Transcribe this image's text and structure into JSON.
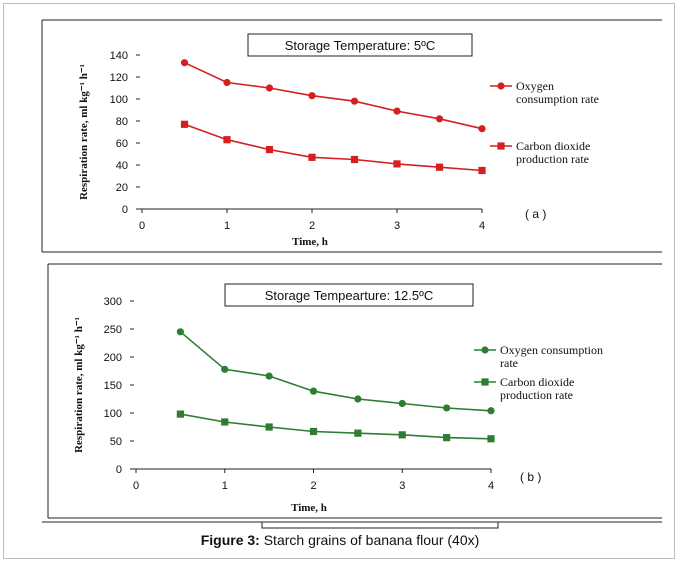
{
  "caption": {
    "prefix": "Figure 3:",
    "text": " Starch grains of banana flour (40x)"
  },
  "colors": {
    "panel_a": "#d42020",
    "panel_b": "#2e7d32",
    "axis": "#222222"
  },
  "chart_data": [
    {
      "type": "line",
      "title": "Storage Temperature: 5ºC",
      "panel_label": "( a )",
      "xlabel": "Time, h",
      "ylabel": "Respiration rate, ml kg⁻¹ h⁻¹",
      "xlim": [
        0,
        4
      ],
      "ylim": [
        0,
        140
      ],
      "x_ticks": [
        0,
        1,
        2,
        3,
        4
      ],
      "y_ticks": [
        0,
        20,
        40,
        60,
        80,
        100,
        120,
        140
      ],
      "x": [
        0.5,
        1,
        1.5,
        2,
        2.5,
        3,
        3.5,
        4
      ],
      "series": [
        {
          "name": "Oxygen consumption rate",
          "legend_lines": [
            "Oxygen",
            "consumption rate"
          ],
          "marker": "circle",
          "values": [
            133,
            115,
            110,
            103,
            98,
            89,
            82,
            73
          ]
        },
        {
          "name": "Carbon dioxide production rate",
          "legend_lines": [
            "Carbon dioxide",
            "production rate"
          ],
          "marker": "square",
          "values": [
            77,
            63,
            54,
            47,
            45,
            41,
            38,
            35
          ]
        }
      ]
    },
    {
      "type": "line",
      "title": "Storage Tempearture: 12.5ºC",
      "panel_label": "( b )",
      "xlabel": "Time, h",
      "ylabel": "Respiration rate, ml kg⁻¹ h⁻¹",
      "xlim": [
        0,
        4
      ],
      "ylim": [
        0,
        300
      ],
      "x_ticks": [
        0,
        1,
        2,
        3,
        4
      ],
      "y_ticks": [
        0,
        50,
        100,
        150,
        200,
        250,
        300
      ],
      "x": [
        0.5,
        1,
        1.5,
        2,
        2.5,
        3,
        3.5,
        4
      ],
      "series": [
        {
          "name": "Oxygen consumption rate",
          "legend_lines": [
            "Oxygen consumption",
            "rate"
          ],
          "marker": "circle",
          "values": [
            245,
            178,
            166,
            139,
            125,
            117,
            109,
            104
          ]
        },
        {
          "name": "Carbon dioxide production rate",
          "legend_lines": [
            "Carbon dioxide",
            "production rate"
          ],
          "marker": "square",
          "values": [
            98,
            84,
            75,
            67,
            64,
            61,
            56,
            54
          ]
        }
      ]
    }
  ]
}
